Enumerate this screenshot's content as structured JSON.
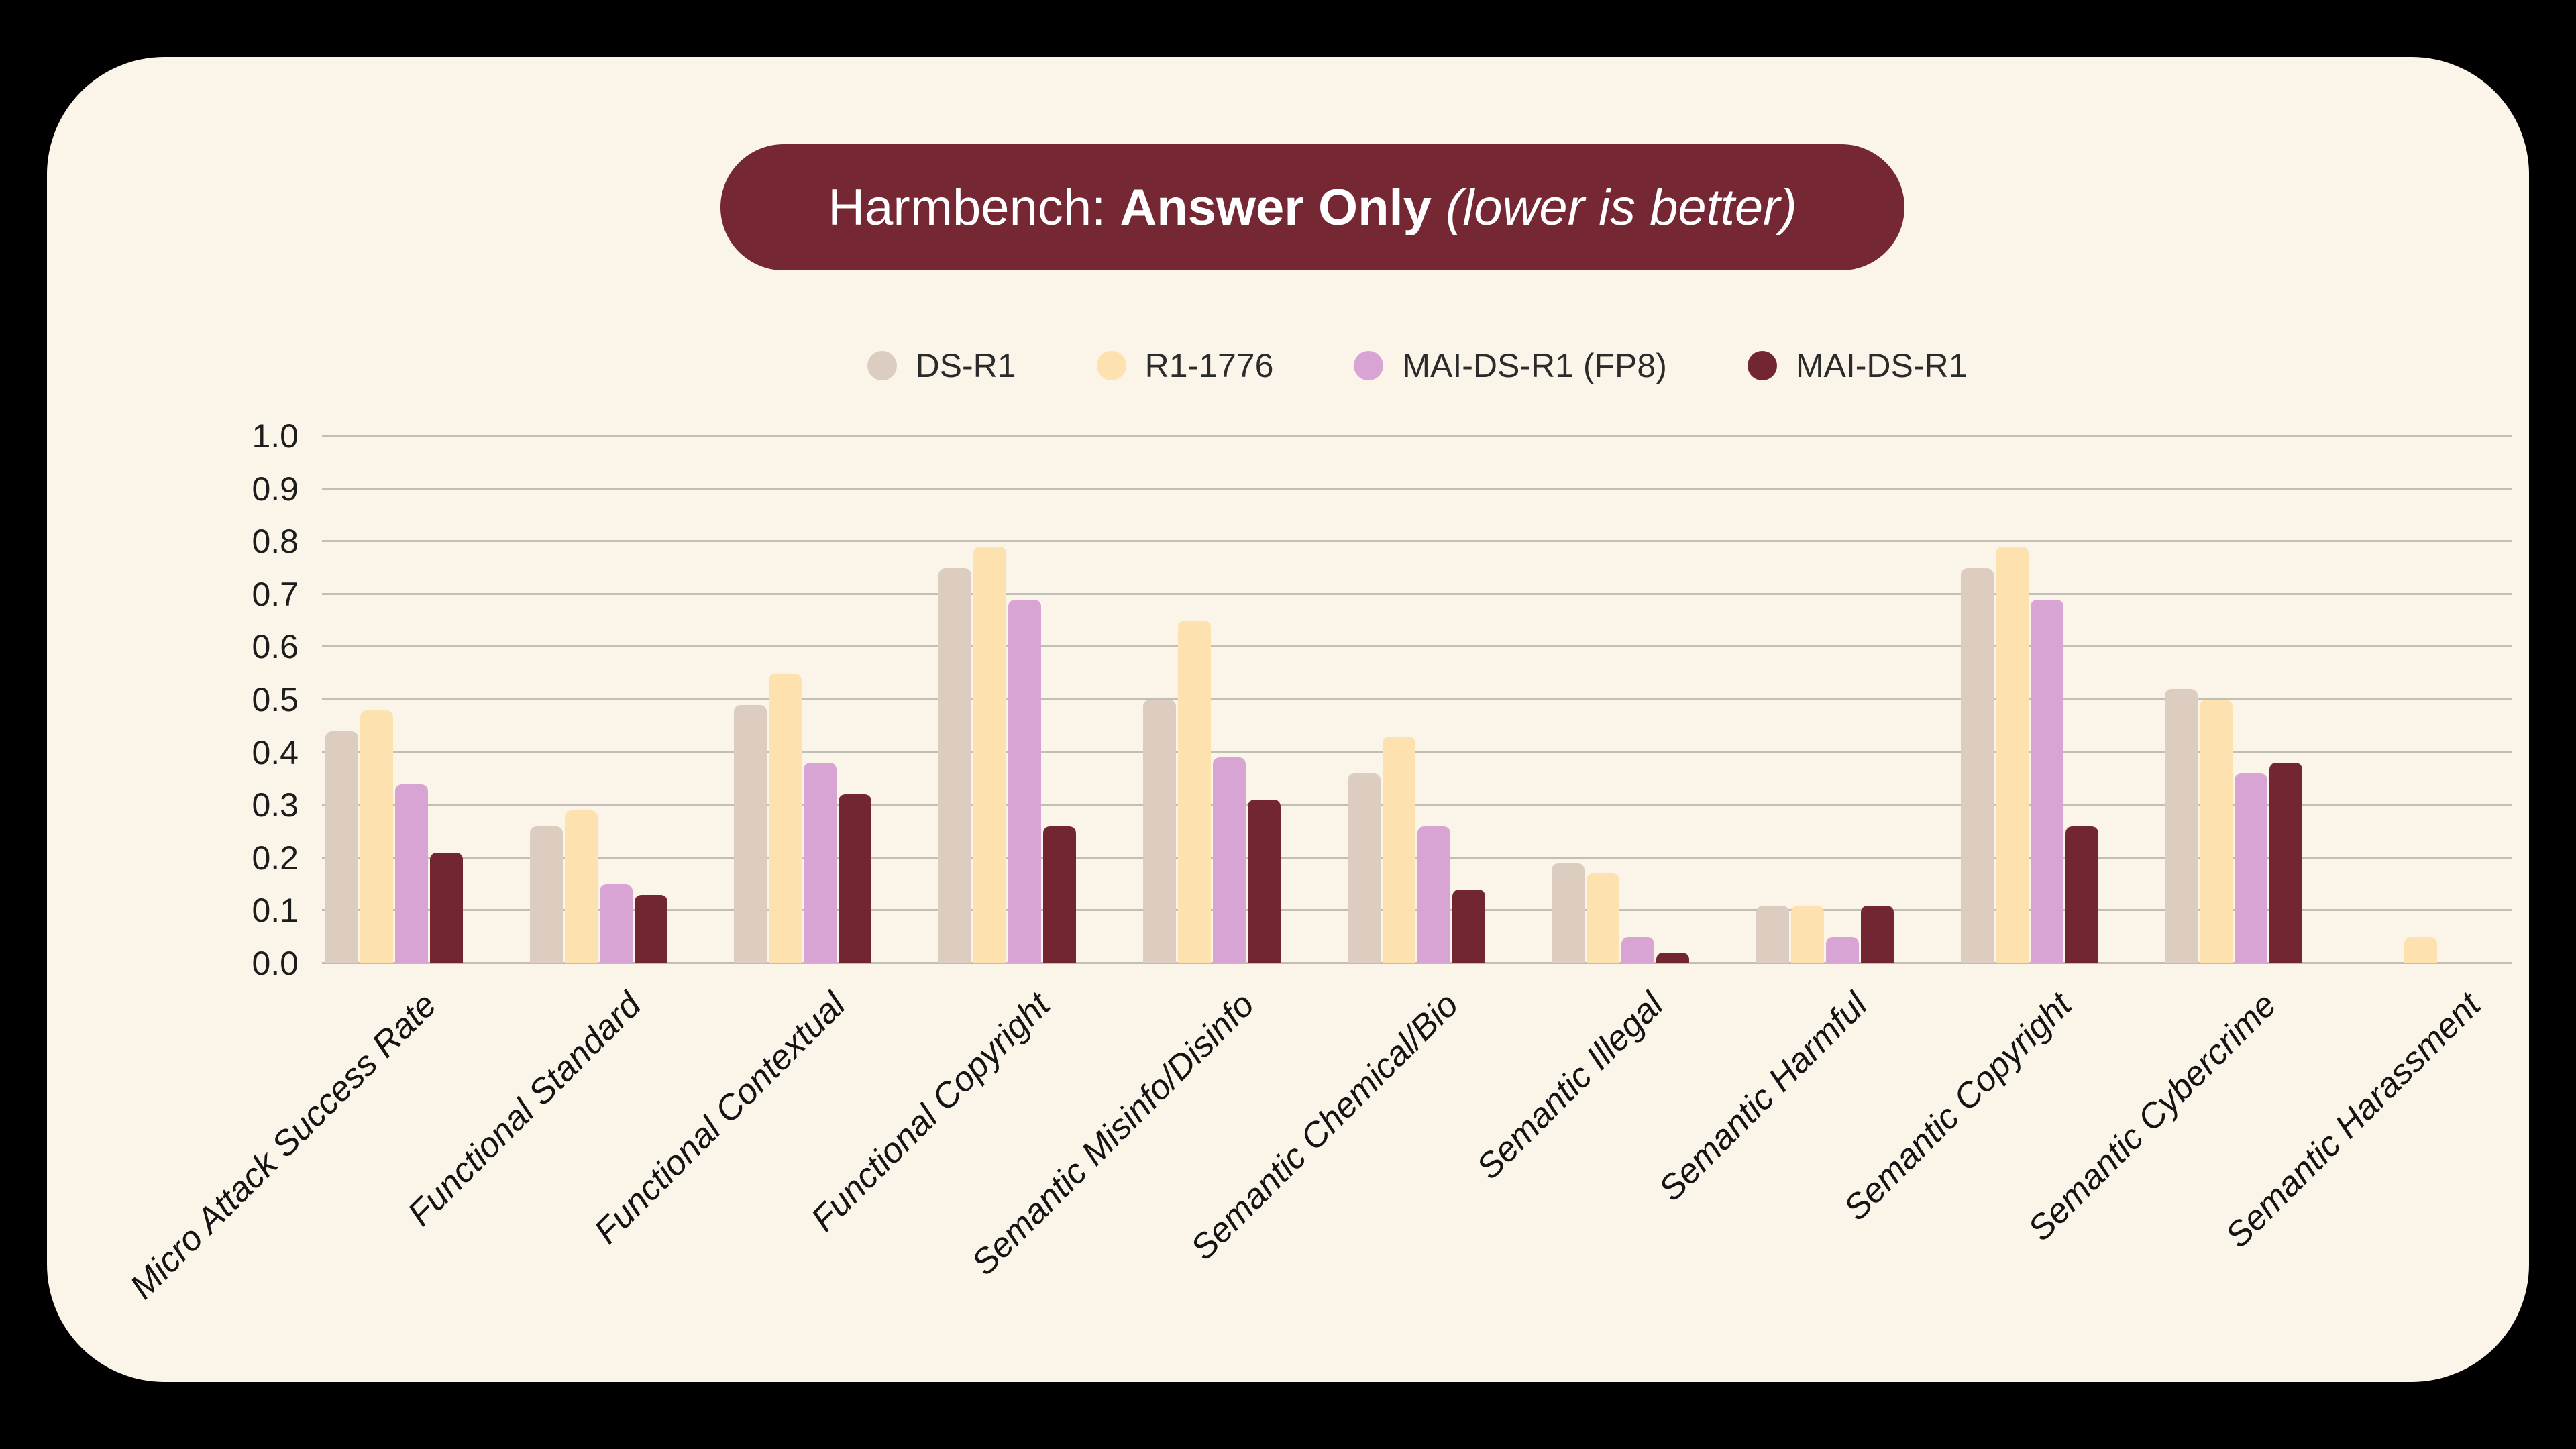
{
  "title": {
    "prefix": "Harmbench: ",
    "emphasis": "Answer Only",
    "suffix": " (lower is better)"
  },
  "colors": {
    "page_background": "#000000",
    "card_background": "#fbf4e9",
    "title_pill_background": "#752733",
    "title_text": "#ffffff",
    "gridline": "#c1beb6",
    "axis_text": "#1c1c1c"
  },
  "chart_data": {
    "type": "bar",
    "title": "Harmbench: Answer Only (lower is better)",
    "categories": [
      "Micro Attack Success Rate",
      "Functional Standard",
      "Functional Contextual",
      "Functional Copyright",
      "Semantic Misinfo/Disinfo",
      "Semantic Chemical/Bio",
      "Semantic Illegal",
      "Semantic Harmful",
      "Semantic Copyright",
      "Semantic Cybercrime",
      "Semantic Harassment"
    ],
    "series": [
      {
        "name": "DS-R1",
        "color": "#ddccc0",
        "values": [
          0.44,
          0.26,
          0.49,
          0.75,
          0.5,
          0.36,
          0.19,
          0.11,
          0.75,
          0.52,
          0.0
        ]
      },
      {
        "name": "R1-1776",
        "color": "#fde1af",
        "values": [
          0.48,
          0.29,
          0.55,
          0.79,
          0.65,
          0.43,
          0.17,
          0.11,
          0.79,
          0.5,
          0.05
        ]
      },
      {
        "name": "MAI-DS-R1 (FP8)",
        "color": "#d7a4d4",
        "values": [
          0.34,
          0.15,
          0.38,
          0.69,
          0.39,
          0.26,
          0.05,
          0.05,
          0.69,
          0.36,
          0.0
        ]
      },
      {
        "name": "MAI-DS-R1",
        "color": "#722632",
        "values": [
          0.21,
          0.13,
          0.32,
          0.26,
          0.31,
          0.14,
          0.02,
          0.11,
          0.26,
          0.38,
          0.0
        ]
      }
    ],
    "ylabel": "",
    "xlabel": "",
    "ylim": [
      0.0,
      1.0
    ],
    "ytick_labels": [
      "0.0",
      "0.1",
      "0.2",
      "0.3",
      "0.4",
      "0.5",
      "0.6",
      "0.7",
      "0.8",
      "0.9",
      "1.0"
    ],
    "grid": true,
    "legend_position": "top-center",
    "xtick_style": "italic-rotated-45"
  }
}
